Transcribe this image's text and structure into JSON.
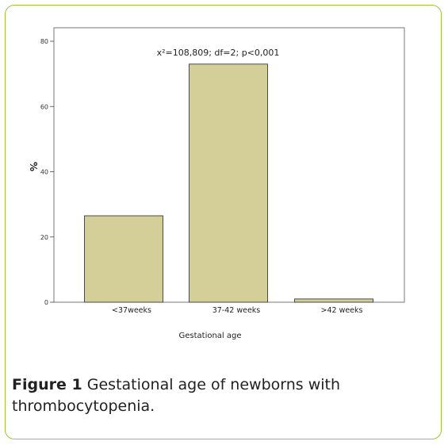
{
  "chart_data": {
    "type": "bar",
    "categories": [
      "<37weeks",
      "37-42 weeks",
      ">42 weeks"
    ],
    "values": [
      26.5,
      73.0,
      1.0
    ],
    "ylabel": "%",
    "xlabel": "Gestational age",
    "ylim": [
      0,
      80
    ],
    "yticks": [
      0,
      20,
      40,
      60,
      80
    ],
    "annotation": "x²=108,809; df=2;  p<0,001",
    "grid": false,
    "colors": {
      "bar_fill": "#d4cf98",
      "bar_stroke": "#3a3a3a",
      "axis": "#444444",
      "frame": "#9cc63a"
    }
  },
  "caption": {
    "label": "Figure 1",
    "text": "Gestational age of newborns with thrombocytopenia."
  }
}
